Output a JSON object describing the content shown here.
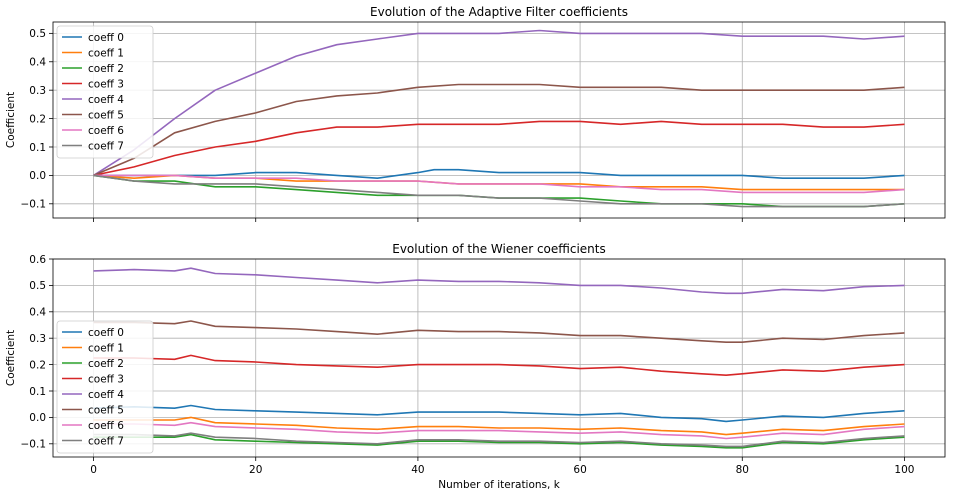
{
  "colors": [
    "#1f77b4",
    "#ff7f0e",
    "#2ca02c",
    "#d62728",
    "#9467bd",
    "#8c564b",
    "#e377c2",
    "#7f7f7f"
  ],
  "xlabel": "Number of iterations, k",
  "chart_data": [
    {
      "type": "line",
      "title": "Evolution of the Adaptive Filter coefficients",
      "xlabel": "",
      "ylabel": "Coefficient",
      "xlim": [
        -5,
        105
      ],
      "ylim": [
        -0.15,
        0.54
      ],
      "xticks": [
        0,
        20,
        40,
        60,
        80,
        100
      ],
      "xtick_labels_visible": false,
      "yticks": [
        -0.1,
        0.0,
        0.1,
        0.2,
        0.3,
        0.4,
        0.5
      ],
      "ytick_labels": [
        "−0.1",
        "0.0",
        "0.1",
        "0.2",
        "0.3",
        "0.4",
        "0.5"
      ],
      "grid": true,
      "legend_position": "upper-left",
      "series": [
        {
          "name": "coeff 0",
          "x": [
            0,
            5,
            10,
            15,
            20,
            25,
            30,
            35,
            40,
            42,
            45,
            50,
            55,
            60,
            65,
            70,
            75,
            80,
            85,
            90,
            95,
            100
          ],
          "values": [
            0.0,
            0.0,
            0.0,
            0.0,
            0.01,
            0.01,
            0.0,
            -0.01,
            0.01,
            0.02,
            0.02,
            0.01,
            0.01,
            0.01,
            0.0,
            0.0,
            0.0,
            0.0,
            -0.01,
            -0.01,
            -0.01,
            0.0
          ]
        },
        {
          "name": "coeff 1",
          "x": [
            0,
            5,
            10,
            15,
            20,
            25,
            30,
            35,
            40,
            45,
            50,
            55,
            60,
            65,
            70,
            75,
            80,
            85,
            90,
            95,
            100
          ],
          "values": [
            0.0,
            -0.01,
            0.0,
            -0.01,
            -0.01,
            -0.02,
            -0.02,
            -0.02,
            -0.02,
            -0.03,
            -0.03,
            -0.03,
            -0.03,
            -0.04,
            -0.04,
            -0.04,
            -0.05,
            -0.05,
            -0.05,
            -0.05,
            -0.05
          ]
        },
        {
          "name": "coeff 2",
          "x": [
            0,
            5,
            10,
            15,
            20,
            25,
            30,
            35,
            40,
            45,
            50,
            55,
            60,
            65,
            70,
            75,
            80,
            85,
            90,
            95,
            100
          ],
          "values": [
            0.0,
            -0.02,
            -0.02,
            -0.04,
            -0.04,
            -0.05,
            -0.06,
            -0.07,
            -0.07,
            -0.07,
            -0.08,
            -0.08,
            -0.08,
            -0.09,
            -0.1,
            -0.1,
            -0.1,
            -0.11,
            -0.11,
            -0.11,
            -0.1
          ]
        },
        {
          "name": "coeff 3",
          "x": [
            0,
            5,
            10,
            15,
            20,
            25,
            30,
            35,
            40,
            45,
            50,
            55,
            60,
            65,
            70,
            75,
            80,
            85,
            90,
            95,
            100
          ],
          "values": [
            0.0,
            0.03,
            0.07,
            0.1,
            0.12,
            0.15,
            0.17,
            0.17,
            0.18,
            0.18,
            0.18,
            0.19,
            0.19,
            0.18,
            0.19,
            0.18,
            0.18,
            0.18,
            0.17,
            0.17,
            0.18
          ]
        },
        {
          "name": "coeff 4",
          "x": [
            0,
            5,
            10,
            15,
            20,
            25,
            30,
            35,
            40,
            45,
            50,
            55,
            60,
            65,
            70,
            75,
            80,
            85,
            90,
            95,
            100
          ],
          "values": [
            0.0,
            0.09,
            0.2,
            0.3,
            0.36,
            0.42,
            0.46,
            0.48,
            0.5,
            0.5,
            0.5,
            0.51,
            0.5,
            0.5,
            0.5,
            0.5,
            0.49,
            0.49,
            0.49,
            0.48,
            0.49
          ]
        },
        {
          "name": "coeff 5",
          "x": [
            0,
            5,
            10,
            15,
            20,
            25,
            30,
            35,
            40,
            45,
            50,
            55,
            60,
            65,
            70,
            75,
            80,
            85,
            90,
            95,
            100
          ],
          "values": [
            0.0,
            0.06,
            0.15,
            0.19,
            0.22,
            0.26,
            0.28,
            0.29,
            0.31,
            0.32,
            0.32,
            0.32,
            0.31,
            0.31,
            0.31,
            0.3,
            0.3,
            0.3,
            0.3,
            0.3,
            0.31
          ]
        },
        {
          "name": "coeff 6",
          "x": [
            0,
            5,
            10,
            15,
            20,
            25,
            30,
            35,
            40,
            45,
            50,
            55,
            60,
            65,
            70,
            75,
            80,
            85,
            90,
            95,
            100
          ],
          "values": [
            0.0,
            0.0,
            0.0,
            -0.01,
            -0.01,
            -0.01,
            -0.02,
            -0.02,
            -0.02,
            -0.03,
            -0.03,
            -0.03,
            -0.04,
            -0.04,
            -0.05,
            -0.05,
            -0.06,
            -0.06,
            -0.06,
            -0.06,
            -0.05
          ]
        },
        {
          "name": "coeff 7",
          "x": [
            0,
            5,
            10,
            15,
            20,
            25,
            30,
            35,
            40,
            45,
            50,
            55,
            60,
            65,
            70,
            75,
            80,
            85,
            90,
            95,
            100
          ],
          "values": [
            0.0,
            -0.02,
            -0.03,
            -0.03,
            -0.03,
            -0.04,
            -0.05,
            -0.06,
            -0.07,
            -0.07,
            -0.08,
            -0.08,
            -0.09,
            -0.1,
            -0.1,
            -0.1,
            -0.11,
            -0.11,
            -0.11,
            -0.11,
            -0.1
          ]
        }
      ]
    },
    {
      "type": "line",
      "title": "Evolution of the Wiener coefficients",
      "xlabel": "Number of iterations, k",
      "ylabel": "Coefficient",
      "xlim": [
        -5,
        105
      ],
      "ylim": [
        -0.15,
        0.6
      ],
      "xticks": [
        0,
        20,
        40,
        60,
        80,
        100
      ],
      "xtick_labels": [
        "0",
        "20",
        "40",
        "60",
        "80",
        "100"
      ],
      "yticks": [
        -0.1,
        0.0,
        0.1,
        0.2,
        0.3,
        0.4,
        0.5,
        0.6
      ],
      "ytick_labels": [
        "−0.1",
        "0.0",
        "0.1",
        "0.2",
        "0.3",
        "0.4",
        "0.5",
        "0.6"
      ],
      "grid": true,
      "legend_position": "lower-left",
      "series": [
        {
          "name": "coeff 0",
          "x": [
            0,
            5,
            10,
            12,
            15,
            20,
            25,
            30,
            35,
            40,
            45,
            50,
            55,
            60,
            65,
            70,
            75,
            78,
            80,
            85,
            90,
            95,
            100
          ],
          "values": [
            0.035,
            0.04,
            0.035,
            0.045,
            0.03,
            0.025,
            0.02,
            0.015,
            0.01,
            0.02,
            0.02,
            0.02,
            0.015,
            0.01,
            0.015,
            0.0,
            -0.005,
            -0.015,
            -0.01,
            0.005,
            0.0,
            0.015,
            0.025
          ]
        },
        {
          "name": "coeff 1",
          "x": [
            0,
            5,
            10,
            12,
            15,
            20,
            25,
            30,
            35,
            40,
            45,
            50,
            55,
            60,
            65,
            70,
            75,
            78,
            80,
            85,
            90,
            95,
            100
          ],
          "values": [
            -0.01,
            -0.01,
            -0.01,
            0.0,
            -0.02,
            -0.025,
            -0.03,
            -0.04,
            -0.045,
            -0.035,
            -0.035,
            -0.04,
            -0.04,
            -0.045,
            -0.04,
            -0.05,
            -0.055,
            -0.065,
            -0.06,
            -0.045,
            -0.05,
            -0.035,
            -0.025
          ]
        },
        {
          "name": "coeff 2",
          "x": [
            0,
            5,
            10,
            12,
            15,
            20,
            25,
            30,
            35,
            40,
            45,
            50,
            55,
            60,
            65,
            70,
            75,
            78,
            80,
            85,
            90,
            95,
            100
          ],
          "values": [
            -0.075,
            -0.075,
            -0.075,
            -0.065,
            -0.085,
            -0.09,
            -0.095,
            -0.1,
            -0.105,
            -0.09,
            -0.09,
            -0.095,
            -0.095,
            -0.1,
            -0.095,
            -0.105,
            -0.11,
            -0.115,
            -0.115,
            -0.095,
            -0.1,
            -0.085,
            -0.075
          ]
        },
        {
          "name": "coeff 3",
          "x": [
            0,
            5,
            10,
            12,
            15,
            20,
            25,
            30,
            35,
            40,
            45,
            50,
            55,
            60,
            65,
            70,
            75,
            78,
            80,
            85,
            90,
            95,
            100
          ],
          "values": [
            0.225,
            0.225,
            0.22,
            0.235,
            0.215,
            0.21,
            0.2,
            0.195,
            0.19,
            0.2,
            0.2,
            0.2,
            0.195,
            0.185,
            0.19,
            0.175,
            0.165,
            0.16,
            0.165,
            0.18,
            0.175,
            0.19,
            0.2
          ]
        },
        {
          "name": "coeff 4",
          "x": [
            0,
            5,
            10,
            12,
            15,
            20,
            25,
            30,
            35,
            40,
            45,
            50,
            55,
            60,
            65,
            70,
            75,
            78,
            80,
            85,
            90,
            95,
            100
          ],
          "values": [
            0.555,
            0.56,
            0.555,
            0.565,
            0.545,
            0.54,
            0.53,
            0.52,
            0.51,
            0.52,
            0.515,
            0.515,
            0.51,
            0.5,
            0.5,
            0.49,
            0.475,
            0.47,
            0.47,
            0.485,
            0.48,
            0.495,
            0.5
          ]
        },
        {
          "name": "coeff 5",
          "x": [
            0,
            5,
            10,
            12,
            15,
            20,
            25,
            30,
            35,
            40,
            45,
            50,
            55,
            60,
            65,
            70,
            75,
            78,
            80,
            85,
            90,
            95,
            100
          ],
          "values": [
            0.36,
            0.36,
            0.355,
            0.365,
            0.345,
            0.34,
            0.335,
            0.325,
            0.315,
            0.33,
            0.325,
            0.325,
            0.32,
            0.31,
            0.31,
            0.3,
            0.29,
            0.285,
            0.285,
            0.3,
            0.295,
            0.31,
            0.32
          ]
        },
        {
          "name": "coeff 6",
          "x": [
            0,
            5,
            10,
            12,
            15,
            20,
            25,
            30,
            35,
            40,
            45,
            50,
            55,
            60,
            65,
            70,
            75,
            78,
            80,
            85,
            90,
            95,
            100
          ],
          "values": [
            -0.025,
            -0.025,
            -0.03,
            -0.02,
            -0.035,
            -0.04,
            -0.045,
            -0.055,
            -0.06,
            -0.05,
            -0.05,
            -0.05,
            -0.055,
            -0.06,
            -0.055,
            -0.065,
            -0.07,
            -0.08,
            -0.075,
            -0.06,
            -0.065,
            -0.045,
            -0.035
          ]
        },
        {
          "name": "coeff 7",
          "x": [
            0,
            5,
            10,
            12,
            15,
            20,
            25,
            30,
            35,
            40,
            45,
            50,
            55,
            60,
            65,
            70,
            75,
            78,
            80,
            85,
            90,
            95,
            100
          ],
          "values": [
            -0.065,
            -0.065,
            -0.07,
            -0.06,
            -0.075,
            -0.08,
            -0.09,
            -0.095,
            -0.1,
            -0.085,
            -0.085,
            -0.09,
            -0.09,
            -0.095,
            -0.09,
            -0.1,
            -0.105,
            -0.11,
            -0.11,
            -0.09,
            -0.095,
            -0.08,
            -0.07
          ]
        }
      ]
    }
  ]
}
